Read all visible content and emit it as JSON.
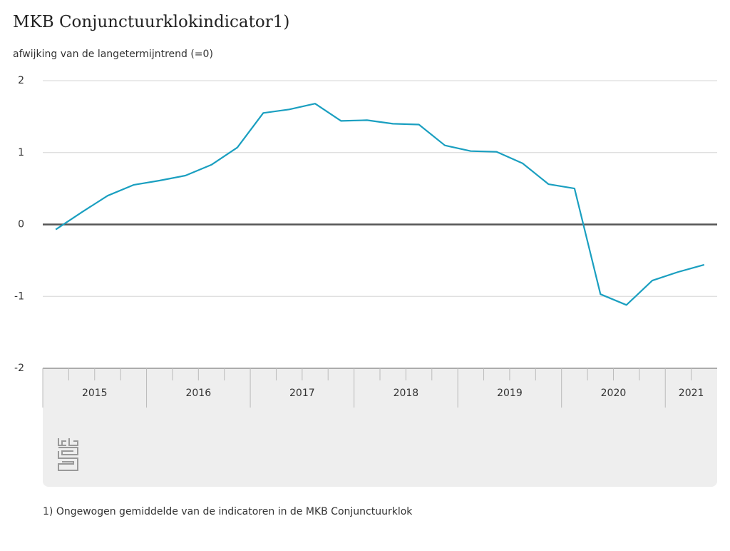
{
  "chart_data": {
    "type": "line",
    "title": "MKB Conjunctuurklokindicator1)",
    "y_label": "afwijking van de langetermijntrend (=0)",
    "footnote": "1) Ongewogen gemiddelde van de indicatoren in de MKB Conjunctuurklok",
    "categories": [
      "2015",
      null,
      null,
      null,
      "2016",
      null,
      null,
      null,
      "2017",
      null,
      null,
      null,
      "2018",
      null,
      null,
      null,
      "2019",
      null,
      null,
      null,
      "2020",
      null,
      null,
      null,
      "2021",
      null
    ],
    "series": [
      {
        "name": "MKB Conjunctuurklokindicator",
        "color": "#1a9fc0",
        "values": [
          -0.07,
          0.17,
          0.4,
          0.55,
          0.61,
          0.68,
          0.83,
          1.07,
          1.55,
          1.6,
          1.68,
          1.44,
          1.45,
          1.4,
          1.39,
          1.1,
          1.02,
          1.01,
          0.85,
          0.56,
          0.5,
          -0.97,
          -1.12,
          -0.78,
          -0.66,
          -0.56
        ]
      }
    ],
    "ylim": [
      -2,
      2
    ],
    "yticks": [
      -2,
      -1,
      0,
      1,
      2
    ],
    "grid": true
  }
}
